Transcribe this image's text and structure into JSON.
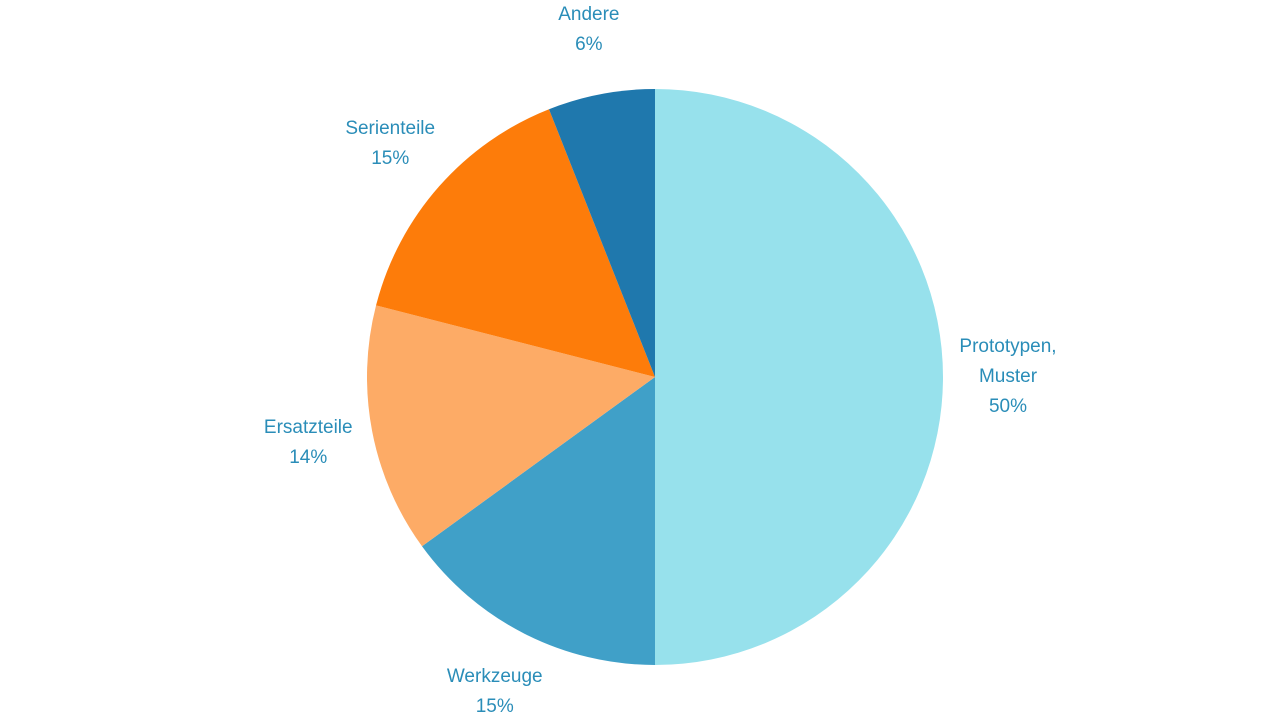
{
  "chart_data": {
    "type": "pie",
    "categories": [
      "Prototypen, Muster",
      "Werkzeuge",
      "Ersatzteile",
      "Serienteile",
      "Andere"
    ],
    "values": [
      50,
      15,
      14,
      15,
      6
    ],
    "value_labels": [
      "50%",
      "15%",
      "14%",
      "15%",
      "6%"
    ],
    "colors": [
      "#97e1ec",
      "#40a0c8",
      "#fdab66",
      "#fd7c0a",
      "#1f78ad"
    ]
  }
}
